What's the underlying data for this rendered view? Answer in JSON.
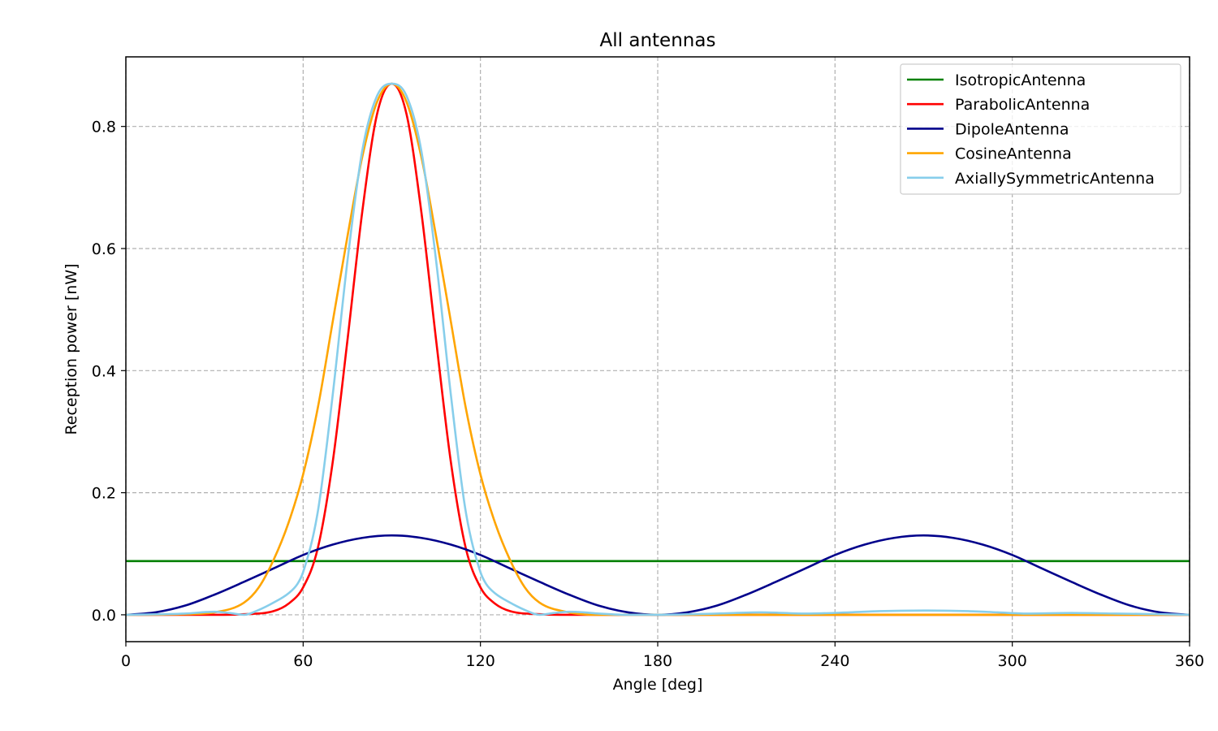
{
  "chart_data": {
    "type": "line",
    "title": "All antennas",
    "xlabel": "Angle [deg]",
    "ylabel": "Reception power [nW]",
    "xlim": [
      0,
      360
    ],
    "ylim": [
      -0.044,
      0.914
    ],
    "xticks": [
      0,
      60,
      120,
      180,
      240,
      300,
      360
    ],
    "yticks": [
      0.0,
      0.2,
      0.4,
      0.6,
      0.8
    ],
    "xtick_labels": [
      "0",
      "60",
      "120",
      "180",
      "240",
      "300",
      "360"
    ],
    "ytick_labels": [
      "0.0",
      "0.2",
      "0.4",
      "0.6",
      "0.8"
    ],
    "grid": true,
    "legend_position": "top-right",
    "series": [
      {
        "name": "IsotropicAntenna",
        "color": "#008000",
        "x": [
          0,
          360
        ],
        "y": [
          0.088,
          0.088
        ]
      },
      {
        "name": "ParabolicAntenna",
        "color": "#ff0000",
        "x": [
          0,
          30,
          40,
          50,
          55,
          60,
          65,
          70,
          75,
          80,
          85,
          90,
          95,
          100,
          105,
          110,
          115,
          120,
          125,
          130,
          140,
          150,
          180,
          240,
          300,
          360
        ],
        "y": [
          0.0,
          0.0,
          0.001,
          0.006,
          0.018,
          0.045,
          0.11,
          0.25,
          0.45,
          0.66,
          0.82,
          0.87,
          0.82,
          0.66,
          0.45,
          0.25,
          0.11,
          0.045,
          0.018,
          0.006,
          0.001,
          0.0,
          0.0,
          0.0,
          0.0,
          0.0
        ]
      },
      {
        "name": "DipoleAntenna",
        "color": "#00008b",
        "x": [
          0,
          10,
          20,
          30,
          40,
          50,
          60,
          70,
          80,
          90,
          100,
          110,
          120,
          130,
          140,
          150,
          160,
          170,
          180,
          190,
          200,
          210,
          220,
          230,
          240,
          250,
          260,
          270,
          280,
          290,
          300,
          310,
          320,
          330,
          340,
          350,
          360
        ],
        "y": [
          0.0,
          0.004,
          0.015,
          0.033,
          0.054,
          0.076,
          0.098,
          0.115,
          0.126,
          0.13,
          0.126,
          0.115,
          0.098,
          0.076,
          0.054,
          0.033,
          0.015,
          0.004,
          0.0,
          0.004,
          0.015,
          0.033,
          0.054,
          0.076,
          0.098,
          0.115,
          0.126,
          0.13,
          0.126,
          0.115,
          0.098,
          0.076,
          0.054,
          0.033,
          0.015,
          0.004,
          0.0
        ]
      },
      {
        "name": "CosineAntenna",
        "color": "#ffa500",
        "x": [
          0,
          20,
          30,
          40,
          45,
          50,
          55,
          60,
          65,
          70,
          75,
          80,
          85,
          90,
          95,
          100,
          105,
          110,
          115,
          120,
          125,
          130,
          135,
          140,
          150,
          160,
          180,
          240,
          300,
          360
        ],
        "y": [
          0.0,
          0.001,
          0.004,
          0.02,
          0.045,
          0.09,
          0.15,
          0.23,
          0.34,
          0.48,
          0.62,
          0.75,
          0.84,
          0.87,
          0.84,
          0.75,
          0.62,
          0.48,
          0.34,
          0.23,
          0.15,
          0.09,
          0.045,
          0.02,
          0.004,
          0.0,
          0.0,
          0.0,
          0.0,
          0.0
        ]
      },
      {
        "name": "AxiallySymmetricAntenna",
        "color": "#87ceeb",
        "x": [
          0,
          20,
          30,
          35,
          40,
          45,
          50,
          55,
          58,
          60,
          65,
          70,
          75,
          80,
          85,
          90,
          95,
          100,
          105,
          110,
          115,
          120,
          122,
          125,
          130,
          135,
          140,
          145,
          150,
          155,
          160,
          170,
          180,
          200,
          215,
          230,
          245,
          255,
          270,
          285,
          295,
          305,
          320,
          335,
          350,
          360
        ],
        "y": [
          0.0,
          0.002,
          0.005,
          0.003,
          0.0,
          0.008,
          0.02,
          0.035,
          0.05,
          0.07,
          0.17,
          0.36,
          0.58,
          0.76,
          0.85,
          0.87,
          0.85,
          0.76,
          0.58,
          0.36,
          0.17,
          0.07,
          0.05,
          0.035,
          0.02,
          0.008,
          0.0,
          0.003,
          0.005,
          0.004,
          0.002,
          0.0,
          0.0,
          0.002,
          0.004,
          0.002,
          0.004,
          0.006,
          0.007,
          0.006,
          0.004,
          0.002,
          0.003,
          0.002,
          0.001,
          0.0
        ]
      }
    ]
  }
}
